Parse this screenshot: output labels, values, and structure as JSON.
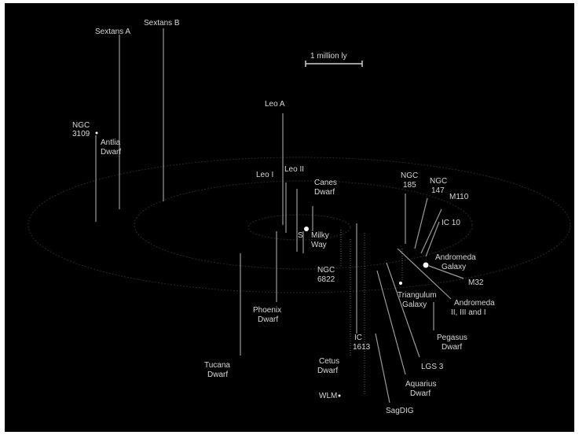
{
  "scale_bar": {
    "label": "1 million ly"
  },
  "galaxies": {
    "sextans_a": "Sextans A",
    "sextans_b": "Sextans B",
    "ngc_3109_line1": "NGC",
    "ngc_3109_line2": "3109",
    "antlia_line1": "Antlia",
    "antlia_line2": "Dwarf",
    "leo_a": "Leo A",
    "leo_i": "Leo I",
    "leo_ii": "Leo II",
    "canes_line1": "Canes",
    "canes_line2": "Dwarf",
    "s": "S",
    "milky_line1": "Milky",
    "milky_line2": "Way",
    "ngc_6822_line1": "NGC",
    "ngc_6822_line2": "6822",
    "phoenix_line1": "Phoenix",
    "phoenix_line2": "Dwarf",
    "tucana_line1": "Tucana",
    "tucana_line2": "Dwarf",
    "ic_1613_line1": "IC",
    "ic_1613_line2": "1613",
    "cetus_line1": "Cetus",
    "cetus_line2": "Dwarf",
    "wlm": "WLM",
    "sagdig": "SagDIG",
    "ngc_185_line1": "NGC",
    "ngc_185_line2": "185",
    "ngc_147_line1": "NGC",
    "ngc_147_line2": "147",
    "m110": "M110",
    "ic_10": "IC 10",
    "andromeda_line1": "Andromeda",
    "andromeda_line2": "Galaxy",
    "m32": "M32",
    "triangulum_line1": "Triangulum",
    "triangulum_line2": "Galaxy",
    "and_sats_line1": "Andromeda",
    "and_sats_line2": "II, III and I",
    "pegasus_line1": "Pegasus",
    "pegasus_line2": "Dwarf",
    "lgs3": "LGS 3",
    "aquarius_line1": "Aquarius",
    "aquarius_line2": "Dwarf"
  }
}
